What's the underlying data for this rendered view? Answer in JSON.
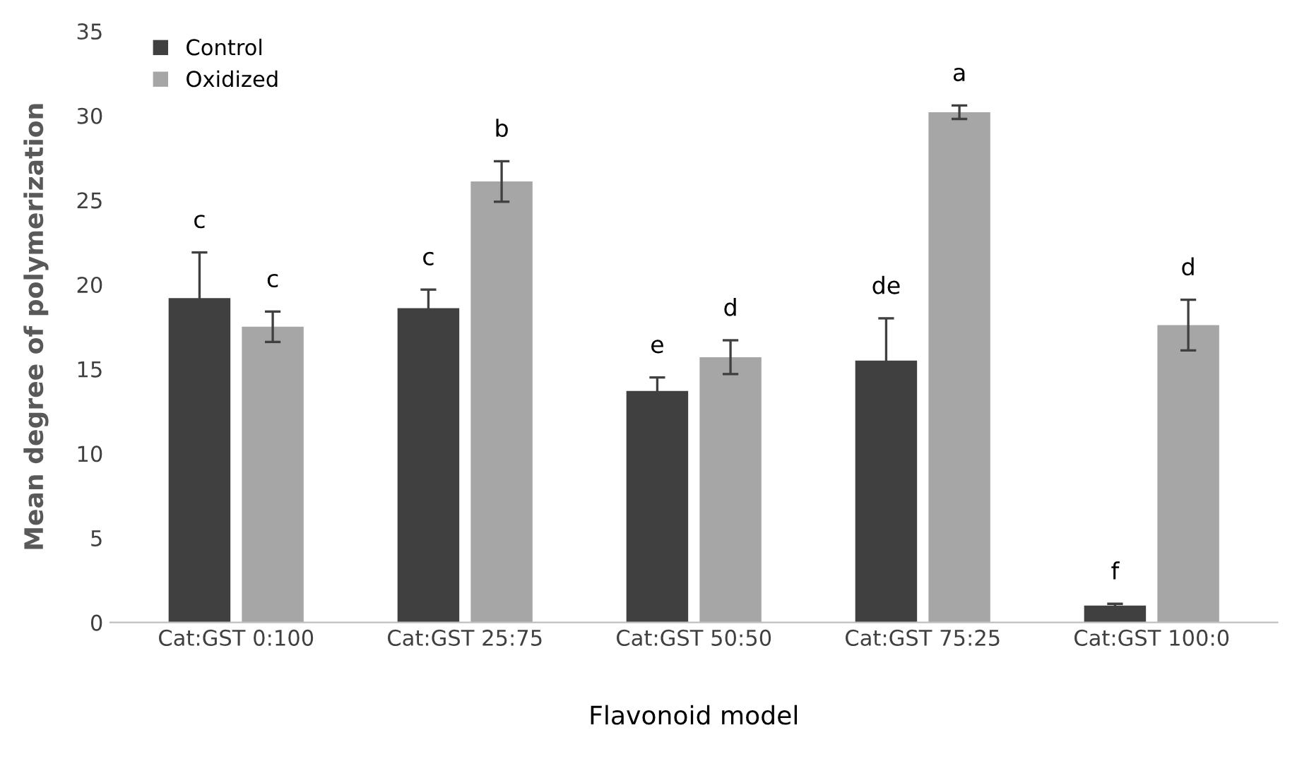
{
  "chart_data": {
    "type": "bar",
    "xlabel": "Flavonoid model",
    "ylabel": "Mean degree of polymerization",
    "categories": [
      "Cat:GST 0:100",
      "Cat:GST 25:75",
      "Cat:GST 50:50",
      "Cat:GST 75:25",
      "Cat:GST 100:0"
    ],
    "series": [
      {
        "name": "Control",
        "color": "#404040",
        "values": [
          19.2,
          18.6,
          13.7,
          15.5,
          1.0
        ],
        "errors": [
          2.7,
          1.1,
          0.8,
          2.5,
          0.1
        ]
      },
      {
        "name": "Oxidized",
        "color": "#a6a6a6",
        "values": [
          17.5,
          26.1,
          15.7,
          30.2,
          17.6
        ],
        "errors": [
          0.9,
          1.2,
          1.0,
          0.4,
          1.5
        ]
      }
    ],
    "ylim": [
      0,
      35
    ],
    "yticks": [
      0,
      5,
      10,
      15,
      20,
      25,
      30,
      35
    ],
    "grid": false,
    "legend": "top left",
    "annotations": [
      "c",
      "c",
      "c",
      "b",
      "e",
      "d",
      "de",
      "a",
      "f",
      "d"
    ]
  }
}
